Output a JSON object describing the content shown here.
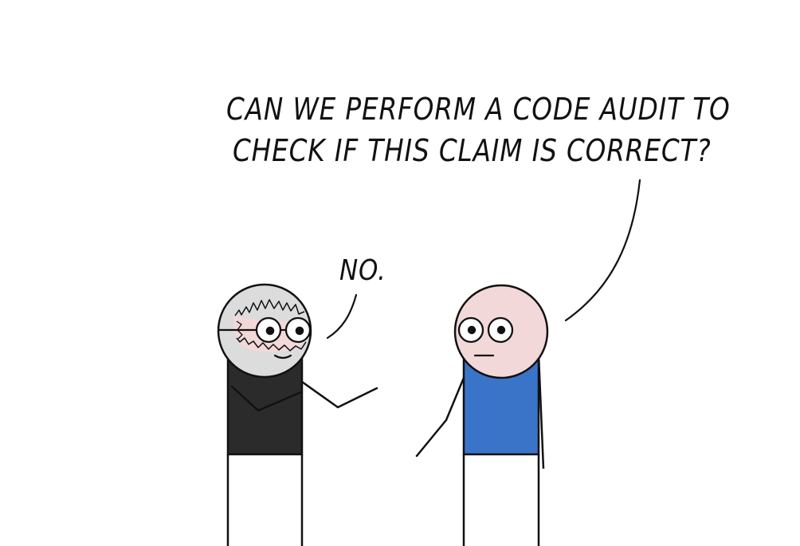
{
  "comic": {
    "question_line_1": "CAN WE PERFORM A CODE AUDIT TO",
    "question_line_2": "CHECK IF THIS CLAIM IS CORRECT?",
    "answer": "NO."
  },
  "colors": {
    "outline": "#111111",
    "skin": "#f2d8d8",
    "hair": "#dcdcdc",
    "left_shirt": "#2b2b2b",
    "right_shirt": "#3a74c9",
    "background": "#ffffff"
  },
  "icons": {
    "left_character": "bearded-glasses-character",
    "right_character": "bald-character"
  }
}
